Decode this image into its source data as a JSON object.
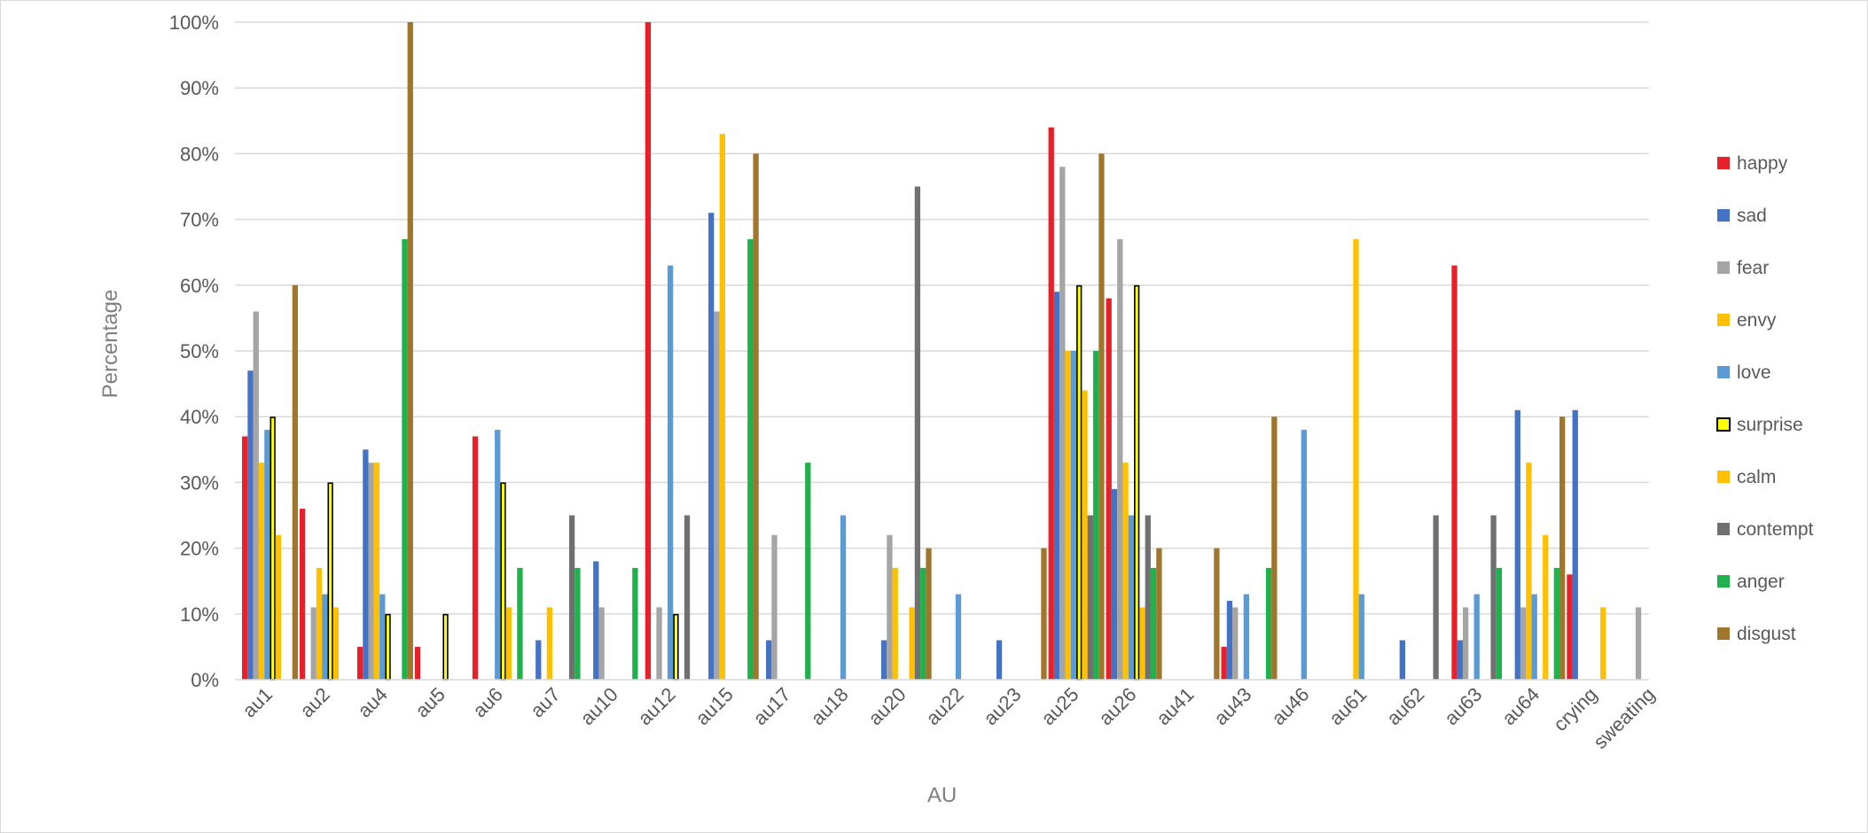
{
  "chart_data": {
    "type": "bar",
    "title": "",
    "xlabel": "AU",
    "ylabel": "Percentage",
    "ylim": [
      0,
      100
    ],
    "yticks": [
      "0%",
      "10%",
      "20%",
      "30%",
      "40%",
      "50%",
      "60%",
      "70%",
      "80%",
      "90%",
      "100%"
    ],
    "grid": true,
    "legend_position": "right",
    "categories": [
      "au1",
      "au2",
      "au4",
      "au5",
      "au6",
      "au7",
      "au10",
      "au12",
      "au15",
      "au17",
      "au18",
      "au20",
      "au22",
      "au23",
      "au25",
      "au26",
      "au41",
      "au43",
      "au46",
      "au61",
      "au62",
      "au63",
      "au64",
      "crying",
      "sweating"
    ],
    "series": [
      {
        "name": "happy",
        "color": "#e8202a",
        "outline": "",
        "values": [
          37,
          26,
          5,
          5,
          37,
          0,
          0,
          100,
          0,
          0,
          0,
          0,
          0,
          0,
          84,
          58,
          0,
          5,
          0,
          0,
          0,
          63,
          0,
          16,
          0
        ]
      },
      {
        "name": "sad",
        "color": "#4472c4",
        "outline": "",
        "values": [
          47,
          0,
          35,
          0,
          0,
          6,
          18,
          0,
          71,
          6,
          0,
          6,
          0,
          6,
          59,
          29,
          0,
          12,
          0,
          0,
          6,
          6,
          41,
          41,
          0
        ]
      },
      {
        "name": "fear",
        "color": "#a5a5a5",
        "outline": "",
        "values": [
          56,
          11,
          33,
          0,
          0,
          0,
          11,
          11,
          56,
          22,
          0,
          22,
          0,
          0,
          78,
          67,
          0,
          11,
          0,
          0,
          0,
          11,
          11,
          0,
          11
        ]
      },
      {
        "name": "envy",
        "color": "#ffc000",
        "outline": "",
        "values": [
          33,
          17,
          33,
          0,
          0,
          11,
          0,
          0,
          83,
          0,
          0,
          17,
          0,
          0,
          50,
          33,
          0,
          0,
          0,
          67,
          0,
          0,
          33,
          0,
          0
        ]
      },
      {
        "name": "love",
        "color": "#5b9bd5",
        "outline": "",
        "values": [
          38,
          13,
          13,
          0,
          38,
          0,
          0,
          63,
          0,
          0,
          25,
          0,
          13,
          0,
          50,
          25,
          0,
          13,
          38,
          13,
          0,
          13,
          13,
          0,
          0
        ]
      },
      {
        "name": "surprise",
        "color": "#ffff00",
        "outline": "#000000",
        "values": [
          40,
          30,
          10,
          10,
          30,
          0,
          0,
          10,
          0,
          0,
          0,
          0,
          0,
          0,
          60,
          60,
          0,
          0,
          0,
          0,
          0,
          0,
          0,
          0,
          0
        ]
      },
      {
        "name": "calm",
        "color": "#ffc000",
        "outline": "",
        "values": [
          22,
          11,
          0,
          0,
          11,
          0,
          0,
          0,
          0,
          0,
          0,
          11,
          0,
          0,
          44,
          11,
          0,
          0,
          0,
          0,
          0,
          0,
          22,
          11,
          0
        ]
      },
      {
        "name": "contempt",
        "color": "#707070",
        "outline": "",
        "values": [
          0,
          0,
          0,
          0,
          0,
          25,
          0,
          25,
          0,
          0,
          0,
          75,
          0,
          0,
          25,
          25,
          0,
          0,
          0,
          0,
          25,
          25,
          0,
          0,
          0
        ]
      },
      {
        "name": "anger",
        "color": "#1fb14b",
        "outline": "",
        "values": [
          0,
          0,
          67,
          0,
          17,
          17,
          17,
          0,
          67,
          33,
          0,
          17,
          0,
          0,
          50,
          17,
          0,
          17,
          0,
          0,
          0,
          17,
          17,
          0,
          0
        ]
      },
      {
        "name": "disgust",
        "color": "#a0762c",
        "outline": "",
        "values": [
          60,
          0,
          100,
          0,
          0,
          0,
          0,
          0,
          80,
          0,
          0,
          20,
          0,
          20,
          80,
          20,
          20,
          40,
          0,
          0,
          0,
          0,
          40,
          0,
          0
        ]
      }
    ]
  }
}
